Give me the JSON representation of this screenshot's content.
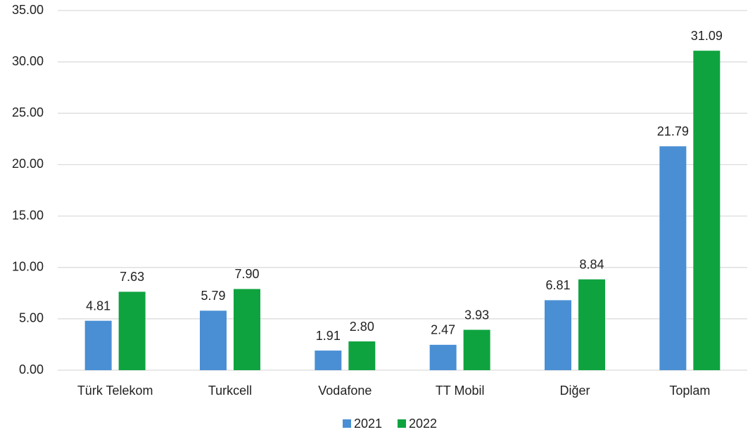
{
  "chart_data": {
    "type": "bar",
    "categories": [
      "Türk Telekom",
      "Turkcell",
      "Vodafone",
      "TT Mobil",
      "Diğer",
      "Toplam"
    ],
    "series": [
      {
        "name": "2021",
        "color": "#4a8fd4",
        "values": [
          4.81,
          5.79,
          1.91,
          2.47,
          6.81,
          21.79
        ],
        "value_labels": [
          "4.81",
          "5.79",
          "1.91",
          "2.47",
          "6.81",
          "21.79"
        ]
      },
      {
        "name": "2022",
        "color": "#0fa33f",
        "values": [
          7.63,
          7.9,
          2.8,
          3.93,
          8.84,
          31.09
        ],
        "value_labels": [
          "7.63",
          "7.90",
          "2.80",
          "3.93",
          "8.84",
          "31.09"
        ]
      }
    ],
    "ylim": [
      0,
      35
    ],
    "yticks": [
      {
        "value": 0,
        "label": "0.00"
      },
      {
        "value": 5,
        "label": "5.00"
      },
      {
        "value": 10,
        "label": "10.00"
      },
      {
        "value": 15,
        "label": "15.00"
      },
      {
        "value": 20,
        "label": "20.00"
      },
      {
        "value": 25,
        "label": "25.00"
      },
      {
        "value": 30,
        "label": "30.00"
      },
      {
        "value": 35,
        "label": "35.00"
      }
    ],
    "grid": true,
    "legend": "bottom"
  }
}
